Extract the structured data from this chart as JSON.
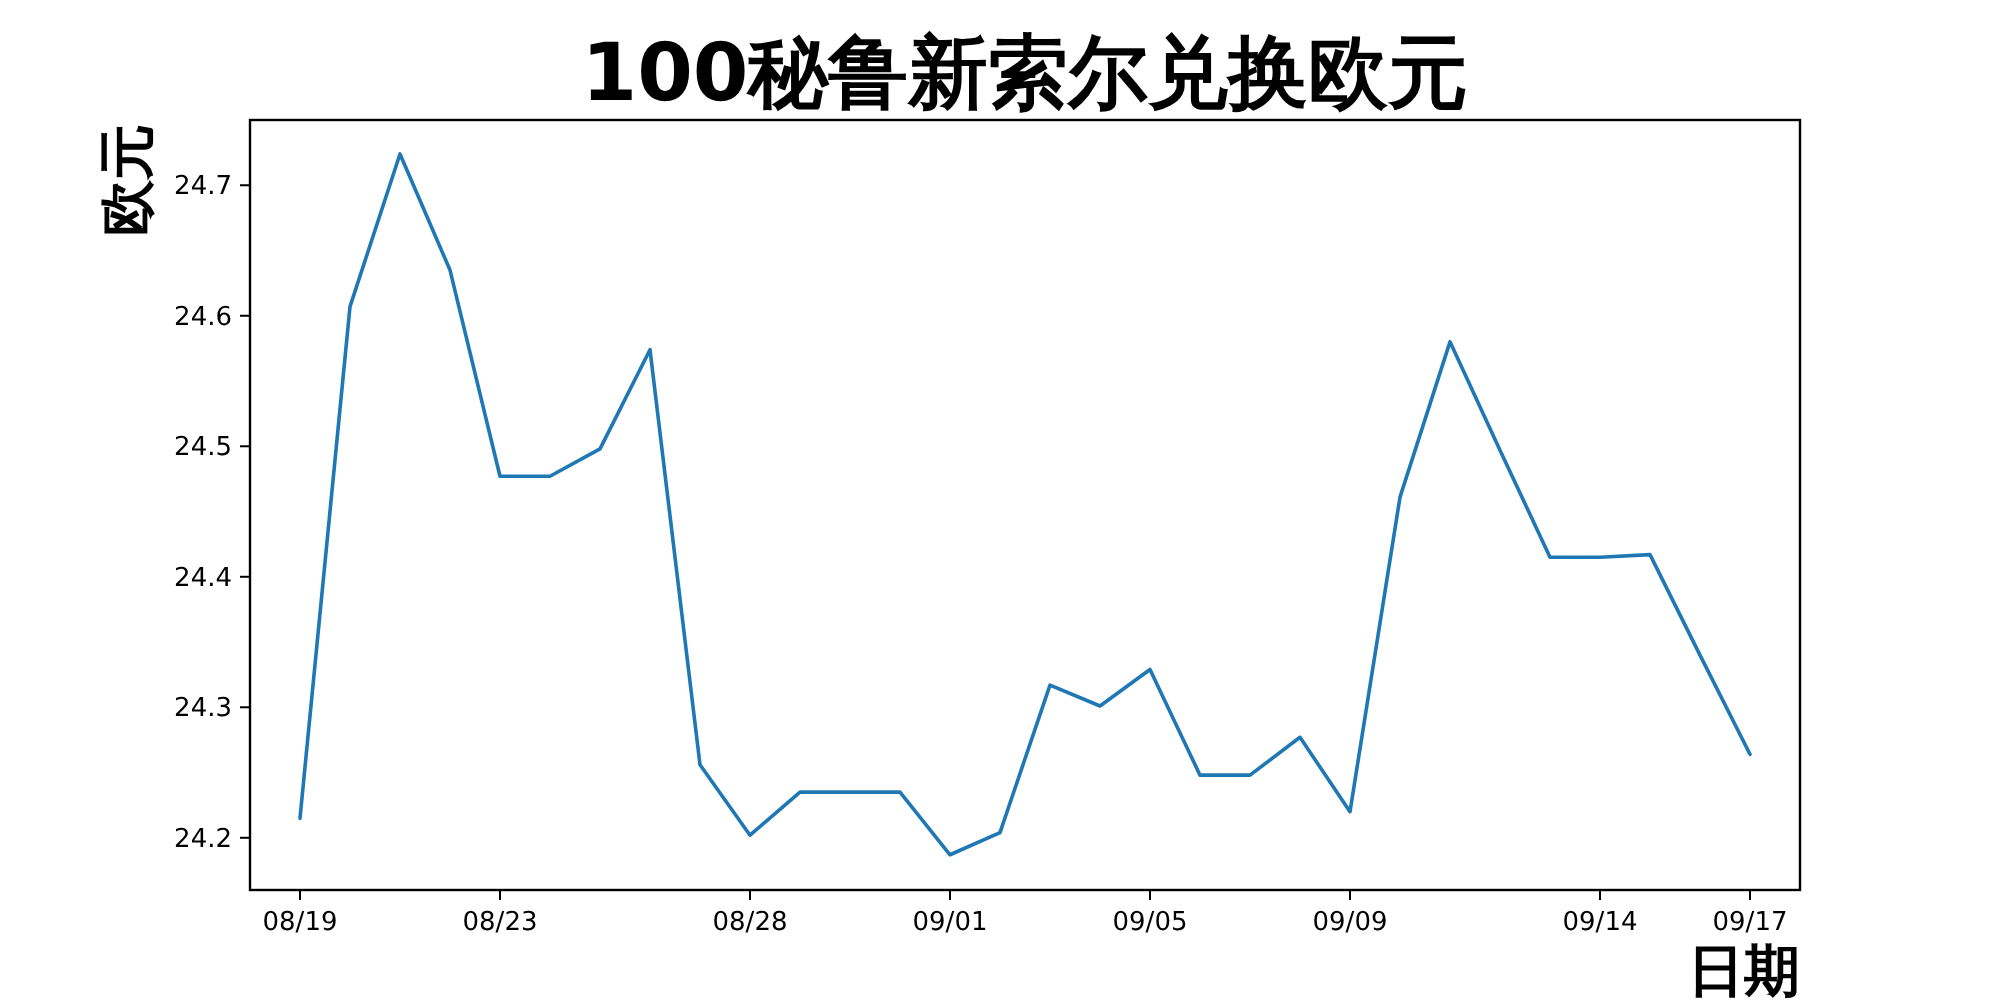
{
  "chart_data": {
    "type": "line",
    "title": "100秘鲁新索尔兑换欧元",
    "xlabel": "日期",
    "ylabel": "欧元",
    "x": [
      "--08-19",
      "--08-20",
      "--08-21",
      "--08-22",
      "--08-23",
      "--08-24",
      "--08-25",
      "--08-26",
      "--08-27",
      "--08-28",
      "--08-29",
      "--08-30",
      "--08-31",
      "--09-01",
      "--09-02",
      "--09-03",
      "--09-04",
      "--09-05",
      "--09-06",
      "--09-07",
      "--09-08",
      "--09-09",
      "--09-10",
      "--09-11",
      "--09-12",
      "--09-13",
      "--09-14",
      "--09-15",
      "--09-16",
      "--09-17"
    ],
    "series": [
      {
        "color": "#1f77b4",
        "values": [
          24.215,
          24.607,
          24.724,
          24.635,
          24.477,
          24.477,
          24.498,
          24.574,
          24.256,
          24.202,
          24.235,
          24.235,
          24.235,
          24.187,
          24.204,
          24.317,
          24.301,
          24.329,
          24.248,
          24.248,
          24.277,
          24.22,
          24.461,
          24.58,
          24.497,
          24.415,
          24.415,
          24.417,
          24.34,
          24.264
        ]
      }
    ],
    "xlim": [
      "--08-18",
      "--09-18"
    ],
    "ylim": [
      24.16,
      24.75
    ],
    "xticks": [
      {
        "value": "--08-19",
        "label": "08/19"
      },
      {
        "value": "--08-23",
        "label": "08/23"
      },
      {
        "value": "--08-28",
        "label": "08/28"
      },
      {
        "value": "--09-01",
        "label": "09/01"
      },
      {
        "value": "--09-05",
        "label": "09/05"
      },
      {
        "value": "--09-09",
        "label": "09/09"
      },
      {
        "value": "--09-14",
        "label": "09/14"
      },
      {
        "value": "--09-17",
        "label": "09/17"
      }
    ],
    "yticks": [
      24.2,
      24.3,
      24.4,
      24.5,
      24.6,
      24.7
    ]
  }
}
